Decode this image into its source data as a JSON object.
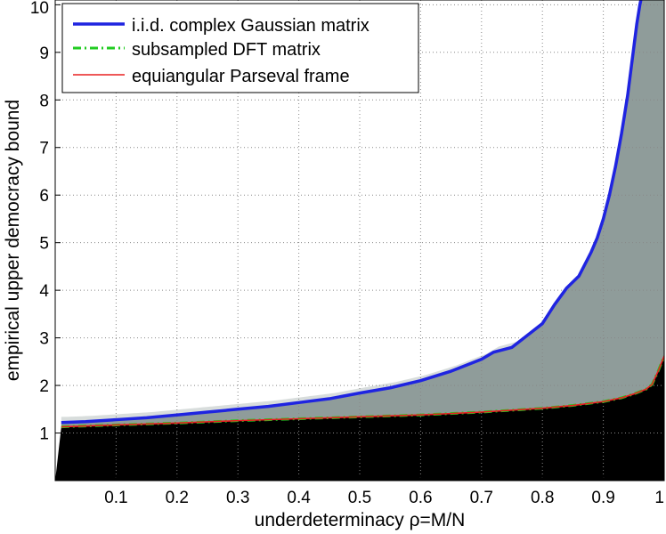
{
  "chart_data": {
    "type": "line",
    "title": "",
    "xlabel": "underdeterminacy  ρ=M/N",
    "ylabel": "empirical upper democracy bound",
    "xlim": [
      0,
      1
    ],
    "ylim": [
      0,
      10.1
    ],
    "x_ticks": [
      0.1,
      0.2,
      0.3,
      0.4,
      0.5,
      0.6,
      0.7,
      0.8,
      0.9,
      1
    ],
    "x_tick_labels": [
      "0.1",
      "0.2",
      "0.3",
      "0.4",
      "0.5",
      "0.6",
      "0.7",
      "0.8",
      "0.9",
      "1"
    ],
    "y_ticks": [
      1,
      2,
      3,
      4,
      5,
      6,
      7,
      8,
      9,
      10
    ],
    "y_tick_labels": [
      "1",
      "2",
      "3",
      "4",
      "5",
      "6",
      "7",
      "8",
      "9",
      "10"
    ],
    "grid": true,
    "legend_position": "top-left",
    "background_colors": {
      "plot": "#ffffff",
      "below_region": "#000000",
      "band_region": "#8f9c9a",
      "band_edge": "#d8dddc"
    },
    "series": [
      {
        "name": "i.i.d. complex Gaussian matrix",
        "color": "#1f24e0",
        "style": "solid-thick",
        "x": [
          0.01,
          0.05,
          0.1,
          0.15,
          0.2,
          0.25,
          0.3,
          0.35,
          0.4,
          0.45,
          0.5,
          0.55,
          0.6,
          0.65,
          0.7,
          0.72,
          0.75,
          0.78,
          0.8,
          0.82,
          0.84,
          0.86,
          0.88,
          0.89,
          0.9,
          0.91,
          0.92,
          0.93,
          0.94,
          0.95,
          0.955,
          0.96,
          0.965
        ],
        "y": [
          1.22,
          1.24,
          1.28,
          1.32,
          1.38,
          1.44,
          1.5,
          1.56,
          1.64,
          1.72,
          1.84,
          1.95,
          2.1,
          2.3,
          2.55,
          2.7,
          2.8,
          3.1,
          3.3,
          3.7,
          4.05,
          4.3,
          4.8,
          5.1,
          5.5,
          6.0,
          6.6,
          7.3,
          8.1,
          9.1,
          9.6,
          10.0,
          10.3
        ]
      },
      {
        "name": "subsampled DFT matrix",
        "color": "#22cc22",
        "style": "dash-dot",
        "x": [
          0.01,
          0.1,
          0.2,
          0.3,
          0.4,
          0.5,
          0.6,
          0.7,
          0.8,
          0.85,
          0.9,
          0.93,
          0.95,
          0.97,
          0.98,
          0.99,
          1.0
        ],
        "y": [
          1.13,
          1.17,
          1.21,
          1.26,
          1.3,
          1.34,
          1.38,
          1.44,
          1.52,
          1.58,
          1.66,
          1.74,
          1.82,
          1.92,
          2.02,
          2.3,
          2.62
        ]
      },
      {
        "name": "equiangular Parseval frame",
        "color": "#e82020",
        "style": "solid-thin",
        "x": [
          0.01,
          0.1,
          0.2,
          0.3,
          0.4,
          0.5,
          0.6,
          0.7,
          0.8,
          0.85,
          0.9,
          0.93,
          0.95,
          0.97,
          0.98,
          0.99,
          1.0
        ],
        "y": [
          1.13,
          1.17,
          1.21,
          1.26,
          1.3,
          1.34,
          1.38,
          1.44,
          1.52,
          1.58,
          1.66,
          1.74,
          1.82,
          1.92,
          2.02,
          2.3,
          2.62
        ]
      }
    ]
  }
}
